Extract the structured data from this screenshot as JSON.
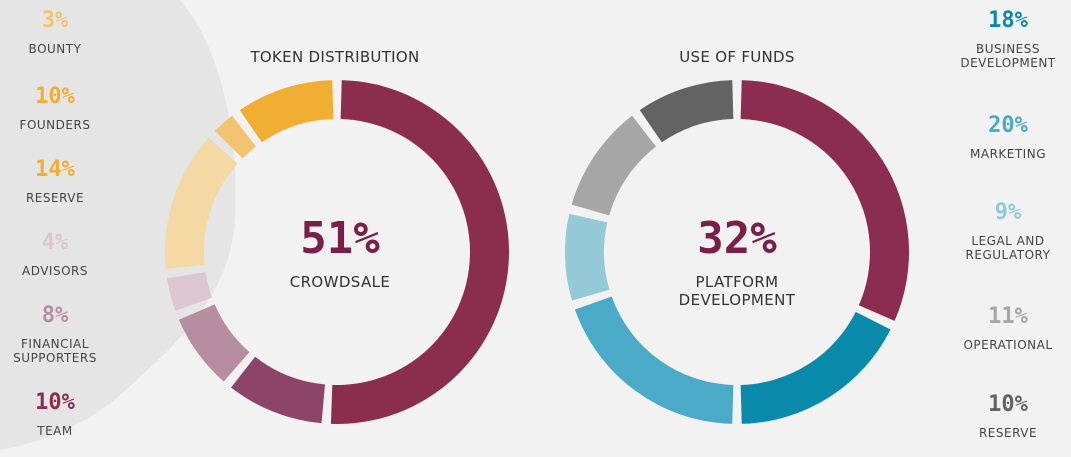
{
  "colors": {
    "accent": "#7a2048",
    "background": "#f2f2f2"
  },
  "chart_data": [
    {
      "type": "pie",
      "donut": true,
      "title": "TOKEN DISTRIBUTION",
      "center": {
        "value": "51%",
        "label": "CROWDSALE"
      },
      "slices": [
        {
          "label": "CROWDSALE",
          "value": 51,
          "color": "#8b2d4c"
        },
        {
          "label": "TEAM",
          "value": 10,
          "color": "#8c4468"
        },
        {
          "label": "FINANCIAL SUPPORTERS",
          "value": 8,
          "color": "#b78ea0"
        },
        {
          "label": "ADVISORS",
          "value": 4,
          "color": "#dcc6cf"
        },
        {
          "label": "RESERVE",
          "value": 14,
          "color": "#f4d9a4"
        },
        {
          "label": "BOUNTY",
          "value": 3,
          "color": "#f2c46f"
        },
        {
          "label": "FOUNDERS",
          "value": 10,
          "color": "#f0ae33"
        }
      ]
    },
    {
      "type": "pie",
      "donut": true,
      "title": "USE OF FUNDS",
      "center": {
        "value": "32%",
        "label": "PLATFORM\nDEVELOPMENT"
      },
      "slices": [
        {
          "label": "PLATFORM DEVELOPMENT",
          "value": 32,
          "color": "#8a2d4e"
        },
        {
          "label": "BUSINESS DEVELOPMENT",
          "value": 18,
          "color": "#0a8aab"
        },
        {
          "label": "MARKETING",
          "value": 20,
          "color": "#4aaac7"
        },
        {
          "label": "LEGAL AND REGULATORY",
          "value": 9,
          "color": "#94c9d8"
        },
        {
          "label": "OPERATIONAL",
          "value": 11,
          "color": "#a6a6a6"
        },
        {
          "label": "RESERVE",
          "value": 10,
          "color": "#636363"
        }
      ]
    }
  ],
  "left_legend": [
    {
      "pct": "3%",
      "label": "BOUNTY",
      "color": "#f2c46f"
    },
    {
      "pct": "10%",
      "label": "FOUNDERS",
      "color": "#f0ae33"
    },
    {
      "pct": "14%",
      "label": "RESERVE",
      "color": "#f0ae33"
    },
    {
      "pct": "4%",
      "label": "ADVISORS",
      "color": "#dcc6cf"
    },
    {
      "pct": "8%",
      "label": "FINANCIAL\nSUPPORTERS",
      "color": "#b78ea0"
    },
    {
      "pct": "10%",
      "label": "TEAM",
      "color": "#8c2d55"
    }
  ],
  "right_legend": [
    {
      "pct": "18%",
      "label": "BUSINESS\nDEVELOPMENT",
      "color": "#0a8aab"
    },
    {
      "pct": "20%",
      "label": "MARKETING",
      "color": "#4aaac7"
    },
    {
      "pct": "9%",
      "label": "LEGAL AND\nREGULATORY",
      "color": "#94c9d8"
    },
    {
      "pct": "11%",
      "label": "OPERATIONAL",
      "color": "#a6a6a6"
    },
    {
      "pct": "10%",
      "label": "RESERVE",
      "color": "#636363"
    }
  ]
}
